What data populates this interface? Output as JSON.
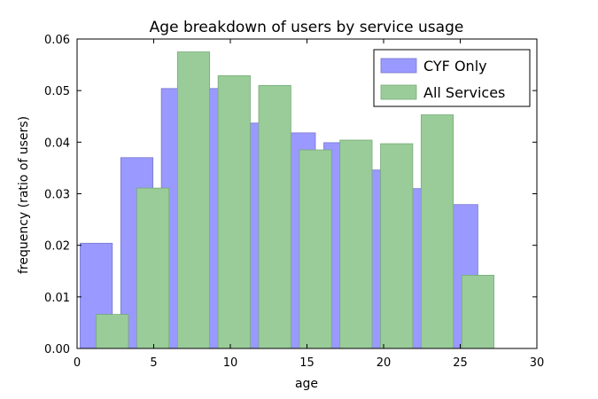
{
  "chart_data": {
    "type": "bar",
    "title": "Age breakdown of users by service usage",
    "xlabel": "age",
    "ylabel": "frequency (ratio of users)",
    "xlim": [
      0,
      30
    ],
    "ylim": [
      0,
      0.06
    ],
    "xticks": [
      0,
      5,
      10,
      15,
      20,
      25,
      30
    ],
    "xtick_labels": [
      "0",
      "5",
      "10",
      "15",
      "20",
      "25",
      "30"
    ],
    "yticks": [
      0,
      0.01,
      0.02,
      0.03,
      0.04,
      0.05,
      0.06
    ],
    "ytick_labels": [
      "0.00",
      "0.01",
      "0.02",
      "0.03",
      "0.04",
      "0.05",
      "0.06"
    ],
    "grid": false,
    "legend_position": "top-right",
    "bin_width": 2.1,
    "series": [
      {
        "name": "CYF Only",
        "color": "#9999ff",
        "edge_color": "#7777cc",
        "x": [
          0.2,
          2.85,
          5.5,
          8.15,
          10.8,
          13.45,
          16.1,
          18.75,
          21.4,
          24.05
        ],
        "values": [
          0.0204,
          0.037,
          0.0504,
          0.0504,
          0.0437,
          0.0418,
          0.0399,
          0.0346,
          0.031,
          0.0279
        ]
      },
      {
        "name": "All Services",
        "color": "#99cc99",
        "edge_color": "#77aa77",
        "x": [
          1.25,
          3.9,
          6.55,
          9.2,
          11.85,
          14.5,
          17.15,
          19.8,
          22.45,
          25.1
        ],
        "values": [
          0.0066,
          0.0311,
          0.0575,
          0.0529,
          0.051,
          0.0385,
          0.0404,
          0.0397,
          0.0453,
          0.0142
        ]
      }
    ]
  }
}
